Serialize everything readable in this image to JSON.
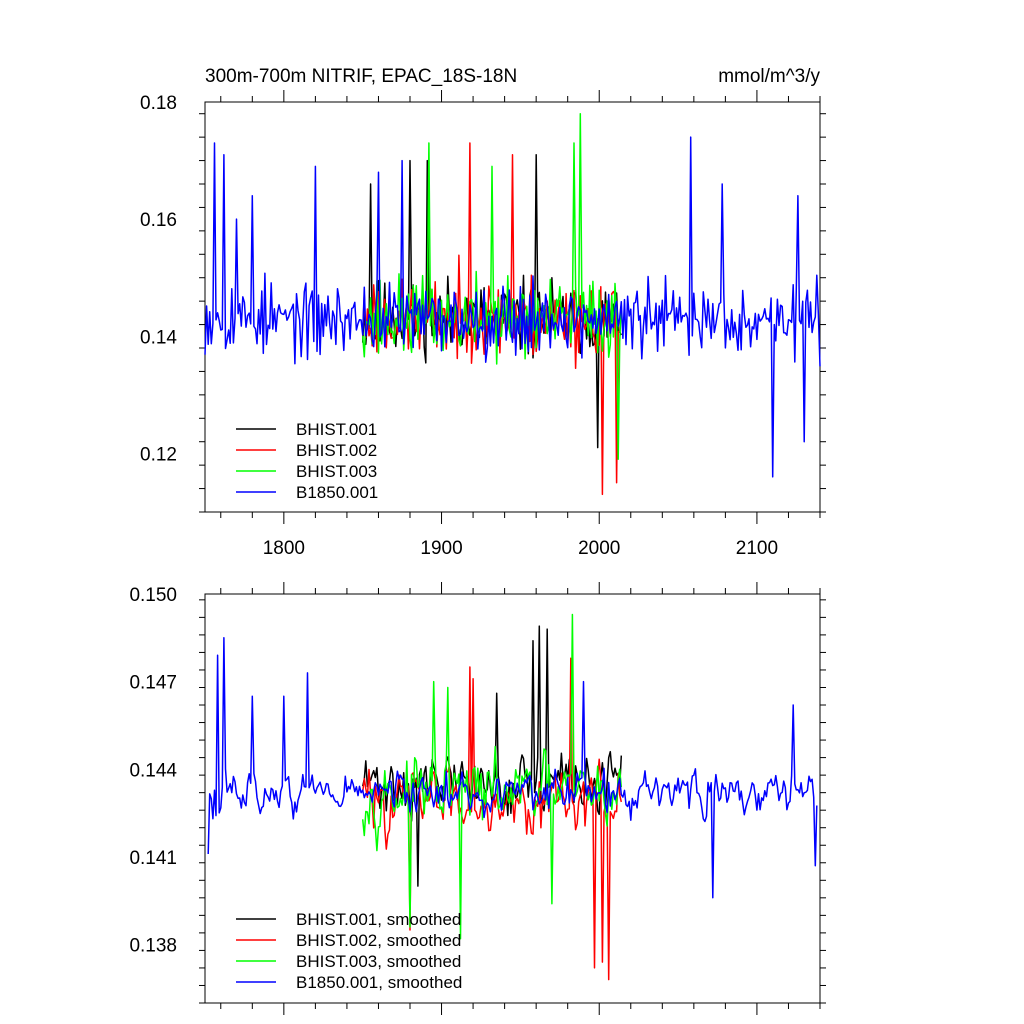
{
  "chart_data": [
    {
      "type": "line",
      "title_left": "300m-700m NITRIF, EPAC_18S-18N",
      "title_right": "mmol/m^3/y",
      "xlim": [
        1750,
        2140
      ],
      "ylim": [
        0.11,
        0.18
      ],
      "xticks": [
        1800,
        1900,
        2000,
        2100
      ],
      "xtick_labels": [
        "1800",
        "1900",
        "2000",
        "2100"
      ],
      "yticks": [
        0.12,
        0.14,
        0.16,
        0.18
      ],
      "ytick_labels": [
        "0.12",
        "0.14",
        "0.16",
        "0.18"
      ],
      "legend_position": "bottom-left",
      "series": [
        {
          "name": "BHIST.001",
          "color": "#000000",
          "x_start": 1850,
          "x_end": 2014,
          "mean": 0.143,
          "amp": 0.011,
          "seed": 11,
          "peaks": [
            [
              1855,
              0.166
            ],
            [
              1880,
              0.17
            ],
            [
              1891,
              0.17
            ],
            [
              1960,
              0.171
            ],
            [
              1999,
              0.121
            ]
          ]
        },
        {
          "name": "BHIST.002",
          "color": "#ff0000",
          "x_start": 1850,
          "x_end": 2014,
          "mean": 0.143,
          "amp": 0.011,
          "seed": 23,
          "peaks": [
            [
              1918,
              0.173
            ],
            [
              1945,
              0.171
            ],
            [
              2002,
              0.113
            ],
            [
              2011,
              0.115
            ]
          ]
        },
        {
          "name": "BHIST.003",
          "color": "#00ff00",
          "x_start": 1850,
          "x_end": 2014,
          "mean": 0.143,
          "amp": 0.011,
          "seed": 37,
          "peaks": [
            [
              1892,
              0.173
            ],
            [
              1932,
              0.169
            ],
            [
              1984,
              0.173
            ],
            [
              1988,
              0.178
            ],
            [
              2012,
              0.119
            ]
          ]
        },
        {
          "name": "B1850.001",
          "color": "#0000ff",
          "x_start": 1750,
          "x_end": 2140,
          "mean": 0.143,
          "amp": 0.01,
          "seed": 53,
          "peaks": [
            [
              1756,
              0.173
            ],
            [
              1762,
              0.171
            ],
            [
              1770,
              0.16
            ],
            [
              1780,
              0.164
            ],
            [
              1820,
              0.169
            ],
            [
              1860,
              0.168
            ],
            [
              1875,
              0.17
            ],
            [
              2058,
              0.174
            ],
            [
              2078,
              0.166
            ],
            [
              2110,
              0.116
            ],
            [
              2126,
              0.164
            ],
            [
              2130,
              0.122
            ]
          ]
        }
      ]
    },
    {
      "type": "line",
      "xlim": [
        1750,
        2140
      ],
      "ylim": [
        0.136,
        0.15
      ],
      "xticks": [
        1800,
        1900,
        2000,
        2100
      ],
      "yticks": [
        0.138,
        0.141,
        0.144,
        0.147,
        0.15
      ],
      "ytick_labels": [
        "0.138",
        "0.141",
        "0.144",
        "0.147",
        "0.150"
      ],
      "legend_position": "bottom-left",
      "series": [
        {
          "name": "BHIST.001, smoothed",
          "color": "#000000",
          "x_start": 1850,
          "x_end": 2014,
          "mean": 0.1435,
          "amp": 0.0016,
          "seed": 71,
          "peaks": [
            [
              1935,
              0.1466
            ],
            [
              1958,
              0.1484
            ],
            [
              1962,
              0.1489
            ],
            [
              1967,
              0.1488
            ],
            [
              1885,
              0.14
            ]
          ]
        },
        {
          "name": "BHIST.002, smoothed",
          "color": "#ff0000",
          "x_start": 1850,
          "x_end": 2014,
          "mean": 0.143,
          "amp": 0.0016,
          "seed": 83,
          "peaks": [
            [
              1918,
              0.1475
            ],
            [
              1920,
              0.1471
            ],
            [
              1982,
              0.1478
            ],
            [
              1997,
              0.1372
            ],
            [
              2002,
              0.1374
            ],
            [
              2006,
              0.1368
            ],
            [
              1880,
              0.1385
            ]
          ]
        },
        {
          "name": "BHIST.003, smoothed",
          "color": "#00ff00",
          "x_start": 1850,
          "x_end": 2014,
          "mean": 0.1432,
          "amp": 0.0017,
          "seed": 97,
          "peaks": [
            [
              1895,
              0.147
            ],
            [
              1904,
              0.1468
            ],
            [
              1983,
              0.1493
            ],
            [
              1970,
              0.1394
            ],
            [
              1912,
              0.1382
            ],
            [
              1880,
              0.1386
            ]
          ]
        },
        {
          "name": "B1850.001, smoothed",
          "color": "#0000ff",
          "x_start": 1752,
          "x_end": 2138,
          "mean": 0.1432,
          "amp": 0.0011,
          "seed": 113,
          "peaks": [
            [
              1758,
              0.1479
            ],
            [
              1762,
              0.1485
            ],
            [
              1780,
              0.1465
            ],
            [
              1800,
              0.1465
            ],
            [
              1815,
              0.1473
            ],
            [
              1990,
              0.147
            ],
            [
              2123,
              0.1462
            ],
            [
              2137,
              0.1407
            ],
            [
              1752,
              0.1411
            ],
            [
              2072,
              0.1396
            ]
          ]
        }
      ]
    }
  ]
}
